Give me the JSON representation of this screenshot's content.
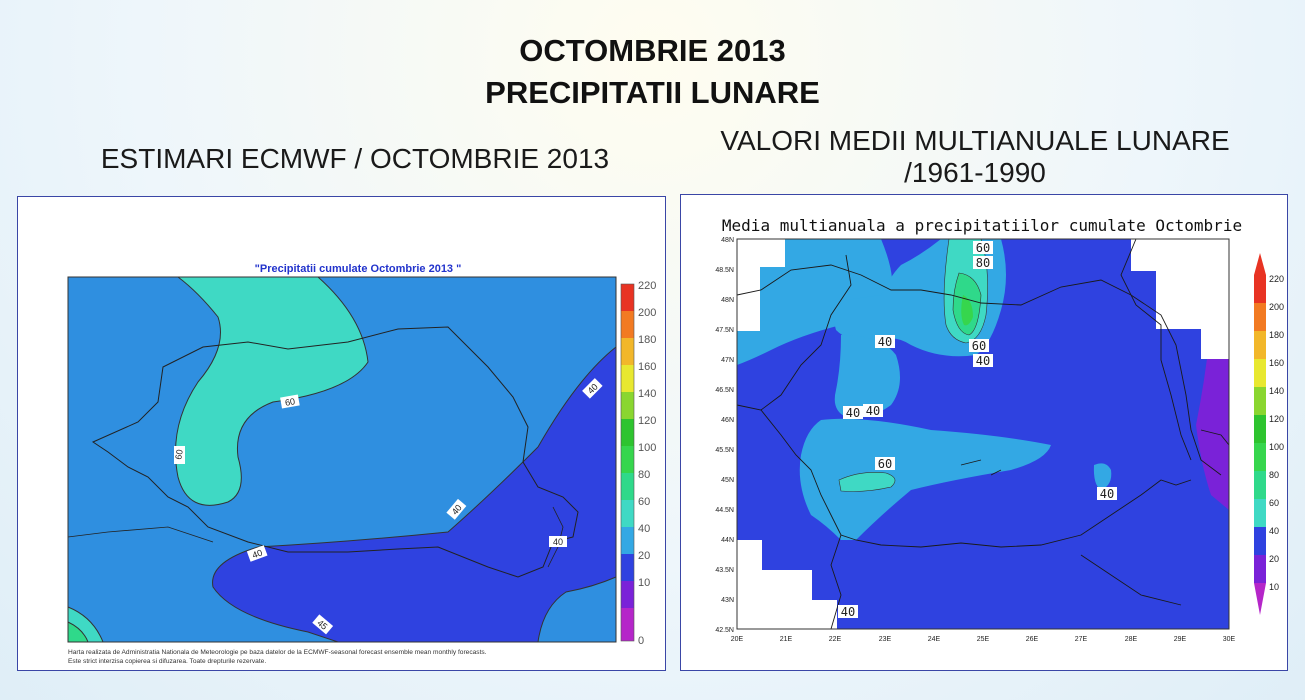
{
  "header": {
    "line1": "OCTOMBRIE 2013",
    "line2": "PRECIPITATII LUNARE"
  },
  "left": {
    "heading": "ESTIMARI ECMWF / OCTOMBRIE 2013",
    "map_title": "\"Precipitatii cumulate Octombrie 2013 \"",
    "contour_labels": [
      "60",
      "60",
      "40",
      "40",
      "40",
      "40",
      "45"
    ],
    "colorbar_ticks": [
      "220",
      "200",
      "180",
      "160",
      "140",
      "120",
      "100",
      "80",
      "60",
      "40",
      "20",
      "10",
      "0"
    ],
    "footer_line1": "Harta realizata de Administratia Nationala de Meteorologie pe baza datelor de la ECMWF-seasonal forecast ensemble mean monthly forecasts.",
    "footer_line2": "Este strict interzisa copierea si difuzarea. Toate drepturile rezervate."
  },
  "right": {
    "heading_line1": "VALORI MEDII MULTIANUALE LUNARE",
    "heading_line2": "/1961-1990",
    "map_title": "Media multianuala a precipitatiilor cumulate Octombrie",
    "contour_labels": [
      "60",
      "80",
      "60",
      "40",
      "40",
      "40",
      "40",
      "60",
      "40",
      "40"
    ],
    "lat_ticks": [
      "48N",
      "48.5N",
      "48N",
      "47.5N",
      "47N",
      "46.5N",
      "46N",
      "45.5N",
      "45N",
      "44.5N",
      "44N",
      "43.5N",
      "43N",
      "42.5N"
    ],
    "lon_ticks": [
      "20E",
      "21E",
      "22E",
      "23E",
      "24E",
      "25E",
      "26E",
      "27E",
      "28E",
      "29E",
      "30E"
    ],
    "colorbar_ticks": [
      "220",
      "200",
      "180",
      "160",
      "140",
      "120",
      "100",
      "80",
      "60",
      "40",
      "20",
      "10"
    ]
  },
  "colors": {
    "level_0_10": "#b526c9",
    "level_10_20": "#7a22d8",
    "level_20_40": "#2f42e0",
    "level_40_60": "#33a8e4",
    "level_60_80": "#3fd9c4",
    "level_80_100": "#2fd98a",
    "level_100_120": "#36d64d",
    "level_120_140": "#2ec42f",
    "level_140_160": "#8ad630",
    "level_160_180": "#e8e830",
    "level_180_200": "#f2b72a",
    "level_200_220": "#f27a22",
    "level_220": "#e83323"
  }
}
